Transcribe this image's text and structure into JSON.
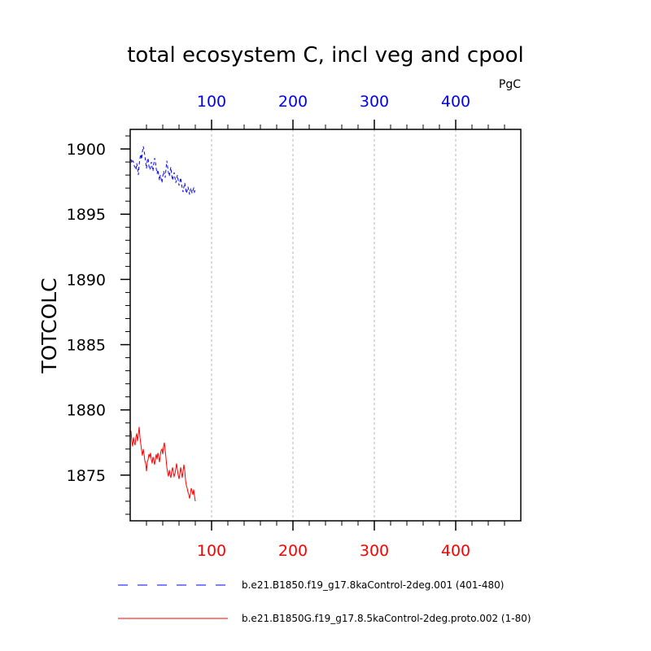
{
  "chart_data": {
    "type": "line",
    "title": "total ecosystem C, incl veg and cpool",
    "ylabel": "TOTCOLC",
    "units": "PgC",
    "xlim": [
      0,
      480
    ],
    "ylim": [
      1871.5,
      1901.5
    ],
    "x_ticks": [
      100,
      200,
      300,
      400
    ],
    "y_ticks": [
      1875,
      1880,
      1885,
      1890,
      1895,
      1900
    ],
    "grid": "vertical dashed at x ticks",
    "top_axis_color": "#0000ff",
    "bottom_axis_color": "#ff0000",
    "series": [
      {
        "name": "b.e21.B1850.f19_g17.8kaControl-2deg.001 (401-480)",
        "axis": "top",
        "color": "#0000ff",
        "dash": "dashed",
        "x": [
          1,
          2,
          3,
          4,
          5,
          6,
          7,
          8,
          9,
          10,
          11,
          12,
          13,
          14,
          15,
          16,
          17,
          18,
          19,
          20,
          21,
          22,
          23,
          24,
          25,
          26,
          27,
          28,
          29,
          30,
          31,
          32,
          33,
          34,
          35,
          36,
          37,
          38,
          39,
          40,
          41,
          42,
          43,
          44,
          45,
          46,
          47,
          48,
          49,
          50,
          51,
          52,
          53,
          54,
          55,
          56,
          57,
          58,
          59,
          60,
          61,
          62,
          63,
          64,
          65,
          66,
          67,
          68,
          69,
          70,
          71,
          72,
          73,
          74,
          75,
          76,
          77,
          78,
          79,
          80
        ],
        "y": [
          1899.2,
          1898.9,
          1899.1,
          1899.0,
          1898.7,
          1898.6,
          1898.4,
          1898.9,
          1898.5,
          1898.0,
          1898.8,
          1899.3,
          1899.6,
          1899.2,
          1899.8,
          1900.2,
          1899.9,
          1899.5,
          1899.0,
          1898.5,
          1899.1,
          1899.3,
          1898.7,
          1898.4,
          1898.6,
          1899.0,
          1898.6,
          1898.3,
          1898.9,
          1899.3,
          1899.0,
          1898.5,
          1898.1,
          1898.4,
          1898.0,
          1897.6,
          1898.0,
          1897.7,
          1897.4,
          1897.9,
          1898.3,
          1898.1,
          1897.8,
          1898.5,
          1899.1,
          1898.6,
          1898.2,
          1897.9,
          1898.3,
          1898.6,
          1898.0,
          1897.6,
          1897.9,
          1898.2,
          1897.8,
          1897.4,
          1897.7,
          1898.0,
          1897.6,
          1897.2,
          1897.5,
          1897.8,
          1897.3,
          1897.0,
          1896.7,
          1897.1,
          1897.4,
          1897.0,
          1896.6,
          1896.8,
          1897.1,
          1896.8,
          1896.5,
          1896.9,
          1897.0,
          1896.6,
          1896.8,
          1897.0,
          1896.7,
          1896.9
        ]
      },
      {
        "name": "b.e21.B1850G.f19_g17.8.5kaControl-2deg.proto.002 (1-80)",
        "axis": "bottom",
        "color": "#ff0000",
        "dash": "solid",
        "x": [
          1,
          2,
          3,
          4,
          5,
          6,
          7,
          8,
          9,
          10,
          11,
          12,
          13,
          14,
          15,
          16,
          17,
          18,
          19,
          20,
          21,
          22,
          23,
          24,
          25,
          26,
          27,
          28,
          29,
          30,
          31,
          32,
          33,
          34,
          35,
          36,
          37,
          38,
          39,
          40,
          41,
          42,
          43,
          44,
          45,
          46,
          47,
          48,
          49,
          50,
          51,
          52,
          53,
          54,
          55,
          56,
          57,
          58,
          59,
          60,
          61,
          62,
          63,
          64,
          65,
          66,
          67,
          68,
          69,
          70,
          71,
          72,
          73,
          74,
          75,
          76,
          77,
          78,
          79,
          80
        ],
        "y": [
          1878.4,
          1877.6,
          1877.2,
          1877.9,
          1877.5,
          1877.3,
          1877.9,
          1878.2,
          1877.6,
          1878.1,
          1878.7,
          1877.9,
          1877.4,
          1876.9,
          1876.5,
          1877.0,
          1876.6,
          1876.1,
          1875.9,
          1875.3,
          1876.0,
          1876.2,
          1876.6,
          1876.4,
          1876.7,
          1876.2,
          1875.9,
          1876.4,
          1876.1,
          1875.8,
          1876.3,
          1876.6,
          1876.2,
          1876.7,
          1876.4,
          1876.0,
          1876.5,
          1876.9,
          1877.0,
          1876.6,
          1877.2,
          1877.5,
          1876.9,
          1876.3,
          1875.6,
          1875.2,
          1874.9,
          1875.4,
          1875.0,
          1874.8,
          1875.3,
          1875.6,
          1875.2,
          1874.9,
          1875.1,
          1875.5,
          1875.9,
          1875.4,
          1875.0,
          1874.7,
          1875.1,
          1875.6,
          1875.2,
          1874.8,
          1875.3,
          1875.8,
          1875.4,
          1874.6,
          1874.2,
          1874.0,
          1873.7,
          1873.5,
          1873.2,
          1873.6,
          1874.0,
          1873.8,
          1873.5,
          1873.9,
          1873.4,
          1873.0
        ]
      }
    ]
  }
}
